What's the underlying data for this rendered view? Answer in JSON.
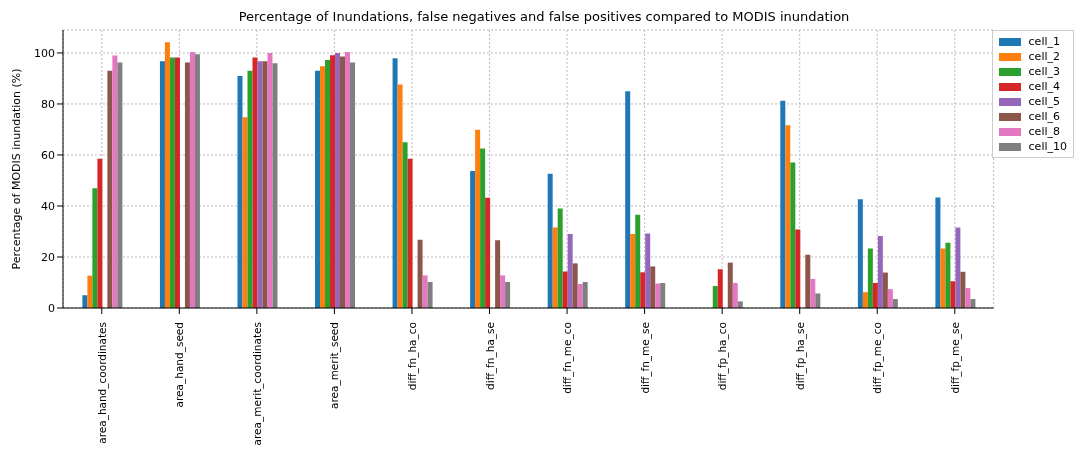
{
  "chart_data": {
    "type": "bar",
    "title": "Percentage of Inundations, false negatives and false positives compared to MODIS inundation",
    "ylabel": "Percentage of MODIS inundation (%)",
    "categories": [
      "area_hand_coordinates",
      "area_hand_seed",
      "area_merit_coordinates",
      "area_merit_seed",
      "diff_fn_ha_co",
      "diff_fn_ha_se",
      "diff_fn_me_co",
      "diff_fn_me_se",
      "diff_fp_ha_co",
      "diff_fp_ha_se",
      "diff_fp_me_co",
      "diff_fp_me_se"
    ],
    "series": [
      {
        "name": "cell_1",
        "color": "#1f77b4",
        "values": [
          5,
          96.7,
          91,
          93,
          97.9,
          53.7,
          52.6,
          85,
          null,
          81.3,
          42.6,
          43.3
        ]
      },
      {
        "name": "cell_2",
        "color": "#ff7f0e",
        "values": [
          12.7,
          104.2,
          74.8,
          94.8,
          87.6,
          69.9,
          31.6,
          29,
          null,
          71.7,
          6.2,
          23.3
        ]
      },
      {
        "name": "cell_3",
        "color": "#2ca02c",
        "values": [
          47,
          98.2,
          93,
          97.2,
          65,
          62.5,
          39,
          36.6,
          8.6,
          57,
          23.3,
          25.6
        ]
      },
      {
        "name": "cell_4",
        "color": "#d62728",
        "values": [
          58.5,
          98.2,
          98.2,
          99.1,
          58.5,
          43.2,
          14.3,
          14,
          15.2,
          30.8,
          9.8,
          10.5
        ]
      },
      {
        "name": "cell_5",
        "color": "#9467bd",
        "values": [
          null,
          null,
          96.7,
          100,
          null,
          null,
          29,
          29.2,
          null,
          null,
          28.2,
          31.6
        ]
      },
      {
        "name": "cell_6",
        "color": "#8c564b",
        "values": [
          93,
          96.3,
          96.7,
          98.6,
          26.8,
          26.6,
          17.5,
          16.3,
          17.8,
          20.9,
          13.9,
          14.2
        ]
      },
      {
        "name": "cell_8",
        "color": "#e377c2",
        "values": [
          99,
          100.4,
          100,
          100.4,
          12.8,
          12.8,
          9.4,
          9.6,
          9.8,
          11.4,
          7.4,
          7.8
        ]
      },
      {
        "name": "cell_10",
        "color": "#7f7f7f",
        "values": [
          96.3,
          99.5,
          96,
          96.3,
          10.2,
          10.2,
          10.2,
          9.8,
          2.6,
          5.7,
          3.5,
          3.5
        ]
      }
    ],
    "ylim": [
      0,
      109
    ],
    "yticks": [
      0,
      20,
      40,
      60,
      80,
      100
    ],
    "grid": true,
    "legend": "top right"
  }
}
